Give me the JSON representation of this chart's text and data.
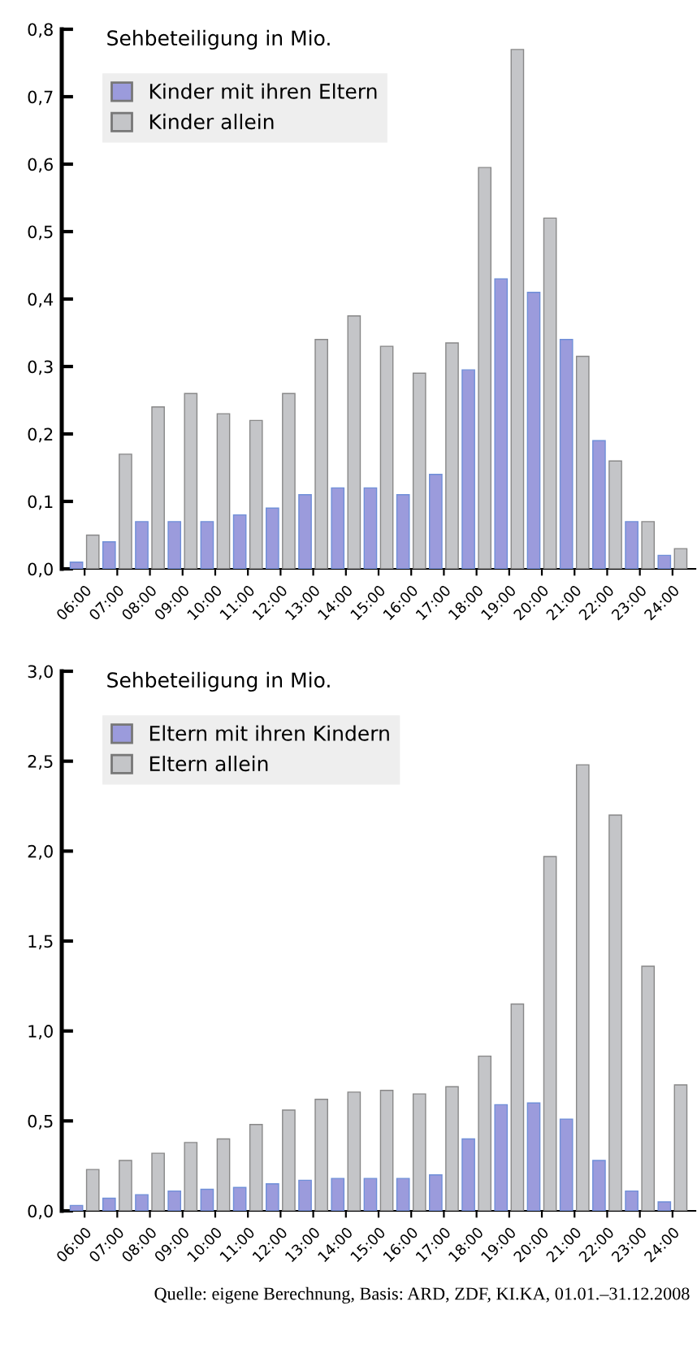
{
  "chart_data": [
    {
      "type": "bar",
      "title": "Sehbeteiligung in Mio.",
      "categories": [
        "06:00",
        "07:00",
        "08:00",
        "09:00",
        "10:00",
        "11:00",
        "12:00",
        "13:00",
        "14:00",
        "15:00",
        "16:00",
        "17:00",
        "18:00",
        "19:00",
        "20:00",
        "21:00",
        "22:00",
        "23:00",
        "24:00"
      ],
      "series": [
        {
          "name": "Kinder mit ihren Eltern",
          "color": "#9b9bdc",
          "values": [
            0.01,
            0.04,
            0.07,
            0.07,
            0.07,
            0.08,
            0.09,
            0.11,
            0.12,
            0.12,
            0.11,
            0.14,
            0.295,
            0.43,
            0.41,
            0.34,
            0.19,
            0.07,
            0.02
          ]
        },
        {
          "name": "Kinder allein",
          "color": "#c4c5c8",
          "values": [
            0.05,
            0.17,
            0.24,
            0.26,
            0.23,
            0.22,
            0.26,
            0.34,
            0.375,
            0.33,
            0.29,
            0.335,
            0.595,
            0.77,
            0.52,
            0.315,
            0.16,
            0.07,
            0.03
          ]
        }
      ],
      "ylim": [
        0,
        0.8
      ],
      "yticks": [
        {
          "value": 0,
          "label": "0,0"
        },
        {
          "value": 0.1,
          "label": "0,1"
        },
        {
          "value": 0.2,
          "label": "0,2"
        },
        {
          "value": 0.3,
          "label": "0,3"
        },
        {
          "value": 0.4,
          "label": "0,4"
        },
        {
          "value": 0.5,
          "label": "0,5"
        },
        {
          "value": 0.6,
          "label": "0,6"
        },
        {
          "value": 0.7,
          "label": "0,7"
        },
        {
          "value": 0.8,
          "label": "0,8"
        }
      ],
      "grid": false,
      "legend": "top left"
    },
    {
      "type": "bar",
      "title": "Sehbeteiligung in Mio.",
      "categories": [
        "06:00",
        "07:00",
        "08:00",
        "09:00",
        "10:00",
        "11:00",
        "12:00",
        "13:00",
        "14:00",
        "15:00",
        "16:00",
        "17:00",
        "18:00",
        "19:00",
        "20:00",
        "21:00",
        "22:00",
        "23:00",
        "24:00"
      ],
      "series": [
        {
          "name": "Eltern mit ihren Kindern",
          "color": "#9b9bdc",
          "values": [
            0.03,
            0.07,
            0.09,
            0.11,
            0.12,
            0.13,
            0.15,
            0.17,
            0.18,
            0.18,
            0.18,
            0.2,
            0.4,
            0.59,
            0.6,
            0.51,
            0.28,
            0.11,
            0.05
          ]
        },
        {
          "name": "Eltern allein",
          "color": "#c4c5c8",
          "values": [
            0.23,
            0.28,
            0.32,
            0.38,
            0.4,
            0.48,
            0.56,
            0.62,
            0.66,
            0.67,
            0.65,
            0.69,
            0.86,
            1.15,
            1.97,
            2.48,
            2.2,
            1.36,
            0.7
          ]
        }
      ],
      "ylim": [
        0,
        3.0
      ],
      "yticks": [
        {
          "value": 0,
          "label": "0,0"
        },
        {
          "value": 0.5,
          "label": "0,5"
        },
        {
          "value": 1.0,
          "label": "1,0"
        },
        {
          "value": 1.5,
          "label": "1,5"
        },
        {
          "value": 2.0,
          "label": "2,0"
        },
        {
          "value": 2.5,
          "label": "2,5"
        },
        {
          "value": 3.0,
          "label": "3,0"
        }
      ],
      "grid": false,
      "legend": "top left",
      "annotations": [
        "Quelle: eigene Berechnung, Basis: ARD, ZDF, KI.KA, 01.01.–31.12.2008"
      ]
    }
  ]
}
